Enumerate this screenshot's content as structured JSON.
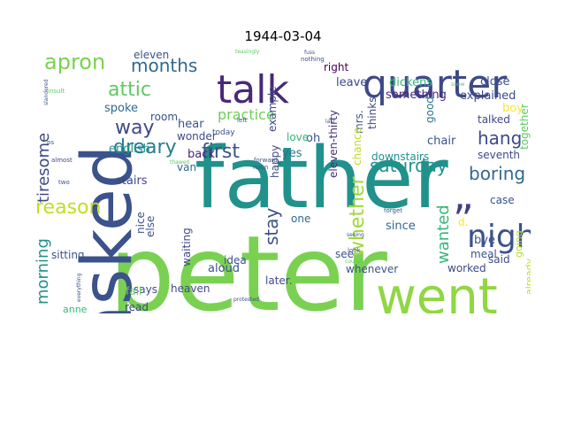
{
  "title": "1944-03-04",
  "cloud": {
    "background": "#ffffff",
    "words": [
      {
        "text": "peter",
        "color": "#7ad151"
      },
      {
        "text": "father",
        "color": "#21918c"
      },
      {
        "text": "asked",
        "color": "#3b528b"
      },
      {
        "text": "french",
        "color": "#31688e"
      },
      {
        "text": "went",
        "color": "#90d743"
      },
      {
        "text": "quarter",
        "color": "#3e4989"
      },
      {
        "text": "talk",
        "color": "#482878"
      },
      {
        "text": "night",
        "color": "#3b528b"
      },
      {
        "text": "”",
        "color": "#433e85"
      },
      {
        "text": "apron",
        "color": "#7ad151"
      },
      {
        "text": "months",
        "color": "#31688e"
      },
      {
        "text": "attic",
        "color": "#5ec962"
      },
      {
        "text": "way",
        "color": "#3e4989"
      },
      {
        "text": "dreary",
        "color": "#287c8e"
      },
      {
        "text": "first",
        "color": "#3b528b"
      },
      {
        "text": "saturday",
        "color": "#21918c"
      },
      {
        "text": "boring",
        "color": "#31688e"
      },
      {
        "text": "hang",
        "color": "#3e4989"
      },
      {
        "text": "whether",
        "color": "#a0da39"
      },
      {
        "text": "wanted",
        "color": "#35b779"
      },
      {
        "text": "reason",
        "color": "#bddf26"
      },
      {
        "text": "tiresome",
        "color": "#3e4989"
      },
      {
        "text": "morning",
        "color": "#21918c"
      },
      {
        "text": "stay",
        "color": "#3b528b"
      },
      {
        "text": "practice",
        "color": "#6ece58"
      },
      {
        "text": "leave",
        "color": "#3e4989"
      },
      {
        "text": "dickens",
        "color": "#35b779"
      },
      {
        "text": "close",
        "color": "#3b528b"
      },
      {
        "text": "something",
        "color": "#482878"
      },
      {
        "text": "explained",
        "color": "#3e4989"
      },
      {
        "text": "eleven",
        "color": "#3b528b"
      },
      {
        "text": "right",
        "color": "#440154"
      },
      {
        "text": "spoke",
        "color": "#31688e"
      },
      {
        "text": "room",
        "color": "#3b528b"
      },
      {
        "text": "english",
        "color": "#21918c"
      },
      {
        "text": "wonder",
        "color": "#3e4989"
      },
      {
        "text": "hear",
        "color": "#3b528b"
      },
      {
        "text": "back",
        "color": "#482878"
      },
      {
        "text": "stairs",
        "color": "#3e4989"
      },
      {
        "text": "van",
        "color": "#31688e"
      },
      {
        "text": "yes",
        "color": "#2c728e"
      },
      {
        "text": "oh",
        "color": "#3b528b"
      },
      {
        "text": "love",
        "color": "#35b779"
      },
      {
        "text": "example",
        "color": "#3e4989"
      },
      {
        "text": "eleven-thirty",
        "color": "#472d7b"
      },
      {
        "text": "mrs.",
        "color": "#3b528b"
      },
      {
        "text": "chance",
        "color": "#bddf26"
      },
      {
        "text": "thinks",
        "color": "#3e4989"
      },
      {
        "text": "good",
        "color": "#2c728e"
      },
      {
        "text": "chair",
        "color": "#3b528b"
      },
      {
        "text": "talked",
        "color": "#3e4989"
      },
      {
        "text": "boy",
        "color": "#fde725"
      },
      {
        "text": "together",
        "color": "#5ec962"
      },
      {
        "text": "seventh",
        "color": "#3e4989"
      },
      {
        "text": "case",
        "color": "#3b528b"
      },
      {
        "text": "downstairs",
        "color": "#21918c"
      },
      {
        "text": "happy",
        "color": "#3e4989"
      },
      {
        "text": "nice",
        "color": "#3b528b"
      },
      {
        "text": "else",
        "color": "#3b528b"
      },
      {
        "text": "waiting",
        "color": "#3e4989"
      },
      {
        "text": "one",
        "color": "#31688e"
      },
      {
        "text": "aloud",
        "color": "#3b528b"
      },
      {
        "text": "since",
        "color": "#31688e"
      },
      {
        "text": "bye",
        "color": "#3b528b"
      },
      {
        "text": "d.",
        "color": "#fde725"
      },
      {
        "text": "meal",
        "color": "#3b528b"
      },
      {
        "text": "said",
        "color": "#3e4989"
      },
      {
        "text": "sitting",
        "color": "#3b528b"
      },
      {
        "text": "says",
        "color": "#3e4989"
      },
      {
        "text": "heaven",
        "color": "#3e4989"
      },
      {
        "text": "idea",
        "color": "#3b528b"
      },
      {
        "text": "later.",
        "color": "#3e4989"
      },
      {
        "text": "see",
        "color": "#3b528b"
      },
      {
        "text": "whenever",
        "color": "#3b528b"
      },
      {
        "text": "worked",
        "color": "#3e4989"
      },
      {
        "text": "going",
        "color": "#b5de2b"
      },
      {
        "text": "already",
        "color": "#bddf26"
      },
      {
        "text": "fall",
        "color": "#6ece58"
      },
      {
        "text": "read",
        "color": "#3e4989"
      },
      {
        "text": "anne",
        "color": "#35b779"
      },
      {
        "text": "today",
        "color": "#3b528b"
      },
      {
        "text": "insult",
        "color": "#5ec962"
      },
      {
        "text": "slandered",
        "color": "#3b528b"
      },
      {
        "text": "ps",
        "color": "#3b528b"
      },
      {
        "text": "almost",
        "color": "#3e4989"
      },
      {
        "text": "two",
        "color": "#3b528b"
      },
      {
        "text": "everything",
        "color": "#3b528b"
      },
      {
        "text": "thawed",
        "color": "#5ec962"
      },
      {
        "text": "left",
        "color": "#3e4989"
      },
      {
        "text": "forward",
        "color": "#3b528b"
      },
      {
        "text": "noon",
        "color": "#3b528b"
      },
      {
        "text": "protested",
        "color": "#3b528b"
      },
      {
        "text": "nothing",
        "color": "#3b528b"
      },
      {
        "text": "teasingly",
        "color": "#5ec962"
      },
      {
        "text": "fuss",
        "color": "#3b528b"
      },
      {
        "text": "last",
        "color": "#3b528b"
      },
      {
        "text": "trust",
        "color": "#5ec962"
      },
      {
        "text": "take",
        "color": "#3b528b"
      },
      {
        "text": "look",
        "color": "#3b528b"
      },
      {
        "text": "forget",
        "color": "#3b528b"
      },
      {
        "text": "seeing",
        "color": "#3b528b"
      },
      {
        "text": "course",
        "color": "#5ec962"
      },
      {
        "text": "snow",
        "color": "#5ec962"
      }
    ]
  }
}
